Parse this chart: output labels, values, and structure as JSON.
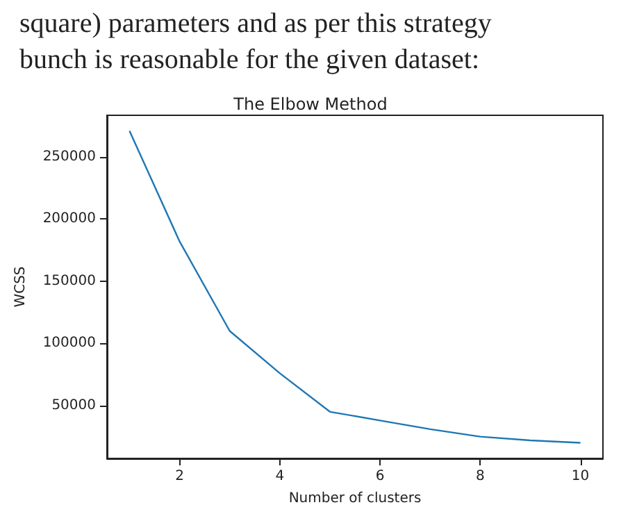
{
  "chart_data": {
    "type": "line",
    "title": "The Elbow Method",
    "xlabel": "Number of clusters",
    "ylabel": "WCSS",
    "annotations": [
      "square) parameters and as per this strategy",
      "bunch is reasonable for the given dataset:"
    ],
    "x": [
      1,
      2,
      3,
      4,
      5,
      6,
      7,
      8,
      9,
      10
    ],
    "series": [
      {
        "color": "#1f77b4",
        "values": [
          271000,
          182000,
          110000,
          76000,
          45000,
          38000,
          31000,
          25000,
          22000,
          20000
        ]
      }
    ],
    "xlim": [
      0.55,
      10.45
    ],
    "xticks": [
      2,
      4,
      6,
      8,
      10
    ],
    "ylim": [
      7450,
      283550
    ],
    "yticks": [
      50000,
      100000,
      150000,
      200000,
      250000
    ],
    "grid": false,
    "marker": "none",
    "line_style": "solid"
  }
}
